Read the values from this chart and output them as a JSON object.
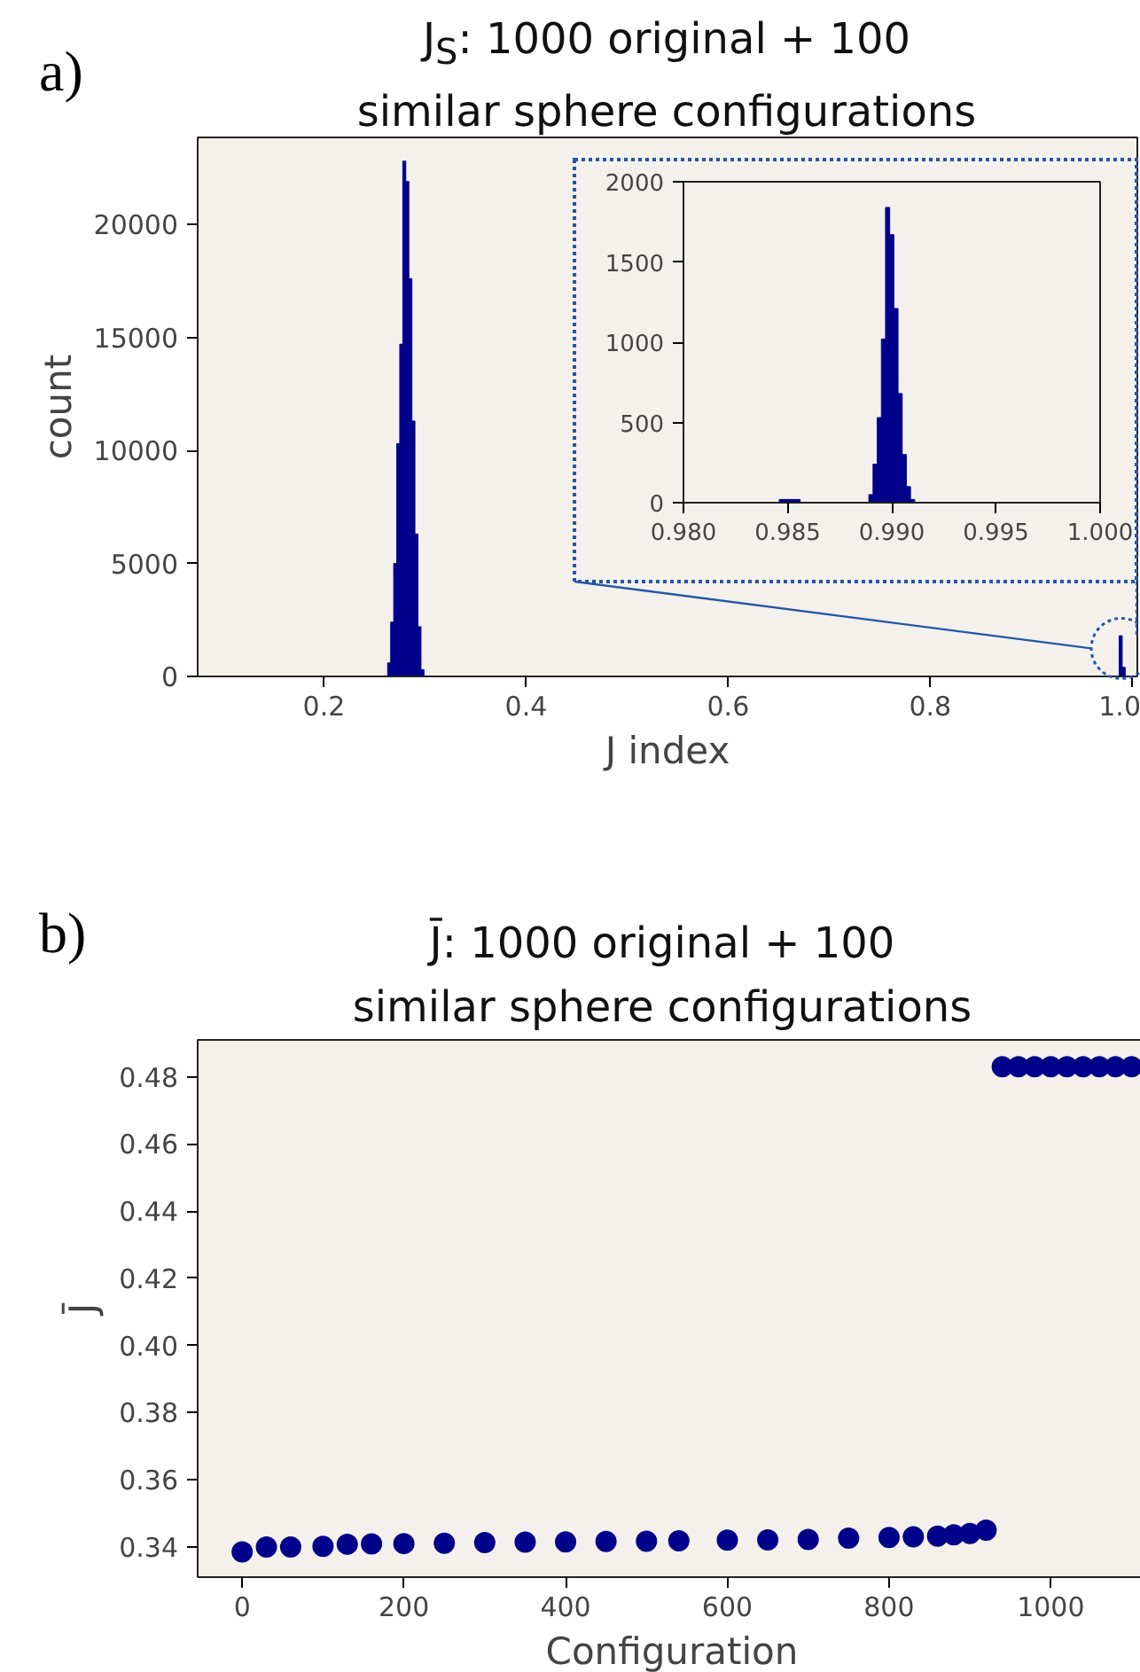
{
  "chart_data": [
    {
      "type": "histogram",
      "title": "J$_{S}$: 1000 original + 100\nsimilar sphere configurations",
      "xlabel": "J index",
      "ylabel": "count",
      "annotations": [
        "a)"
      ],
      "color": "#00008b",
      "bins": [
        0.263,
        0.266,
        0.269,
        0.272,
        0.275,
        0.278,
        0.281,
        0.284,
        0.287,
        0.29,
        0.293,
        0.296,
        0.299,
        0.987,
        0.99,
        0.993
      ],
      "values": [
        600,
        2400,
        5000,
        10300,
        14700,
        22800,
        21900,
        17600,
        11300,
        6300,
        2200,
        300,
        0,
        1800,
        400
      ],
      "xlim": [
        0.075,
        1.005
      ],
      "ylim": [
        0,
        23850
      ],
      "xticks": [
        0.2,
        0.4,
        0.6,
        0.8,
        {
          "value": 1.0,
          "label": "1.0"
        }
      ],
      "yticks": [
        0,
        5000,
        10000,
        15000,
        20000
      ]
    },
    {
      "type": "histogram",
      "color": "#00008b",
      "bins": [
        0.9846,
        0.9856,
        0.9889,
        0.9891,
        0.9893,
        0.9895,
        0.9897,
        0.9899,
        0.9901,
        0.9903,
        0.9905,
        0.9907,
        0.9909,
        0.9911
      ],
      "values": [
        20,
        0,
        50,
        240,
        530,
        1020,
        1840,
        1670,
        1210,
        680,
        300,
        100,
        20
      ],
      "xlim": [
        0.98,
        1.0
      ],
      "ylim": [
        0,
        2000
      ],
      "xticks": [
        {
          "value": 0.98,
          "label": "0.980"
        },
        {
          "value": 0.985,
          "label": "0.985"
        },
        {
          "value": 0.99,
          "label": "0.990"
        },
        {
          "value": 0.995,
          "label": "0.995"
        },
        {
          "value": 1.0,
          "label": "1.000"
        }
      ],
      "yticks": [
        0,
        500,
        1000,
        1500,
        2000
      ]
    },
    {
      "type": "scatter",
      "title": "J̄: 1000 original + 100\nsimilar sphere configurations",
      "xlabel": "Configuration",
      "ylabel": "J̄",
      "annotations": [
        "b)"
      ],
      "color": "#00008b",
      "marker": "circle",
      "x": [
        0,
        30,
        60,
        100,
        130,
        160,
        200,
        250,
        300,
        350,
        400,
        450,
        500,
        540,
        600,
        650,
        700,
        750,
        800,
        830,
        860,
        880,
        900,
        920,
        940,
        960,
        980,
        1000,
        1020,
        1040,
        1060,
        1080,
        1100
      ],
      "values": [
        0.3385,
        0.34,
        0.34,
        0.3402,
        0.3408,
        0.3409,
        0.341,
        0.3411,
        0.3413,
        0.3414,
        0.3415,
        0.3416,
        0.3417,
        0.3418,
        0.342,
        0.3421,
        0.3422,
        0.3426,
        0.3428,
        0.343,
        0.3432,
        0.3436,
        0.344,
        0.345,
        0.483,
        0.483,
        0.483,
        0.483,
        0.483,
        0.483,
        0.483,
        0.483,
        0.483
      ],
      "xlim": [
        -55,
        1118
      ],
      "ylim": [
        0.331,
        0.491
      ],
      "xticks": [
        0,
        200,
        400,
        600,
        800,
        1000
      ],
      "yticks": [
        {
          "value": 0.34,
          "label": "0.34"
        },
        {
          "value": 0.36,
          "label": "0.36"
        },
        {
          "value": 0.38,
          "label": "0.38"
        },
        {
          "value": 0.4,
          "label": "0.40"
        },
        {
          "value": 0.42,
          "label": "0.42"
        },
        {
          "value": 0.44,
          "label": "0.44"
        },
        {
          "value": 0.46,
          "label": "0.46"
        },
        {
          "value": 0.48,
          "label": "0.48"
        }
      ]
    }
  ]
}
